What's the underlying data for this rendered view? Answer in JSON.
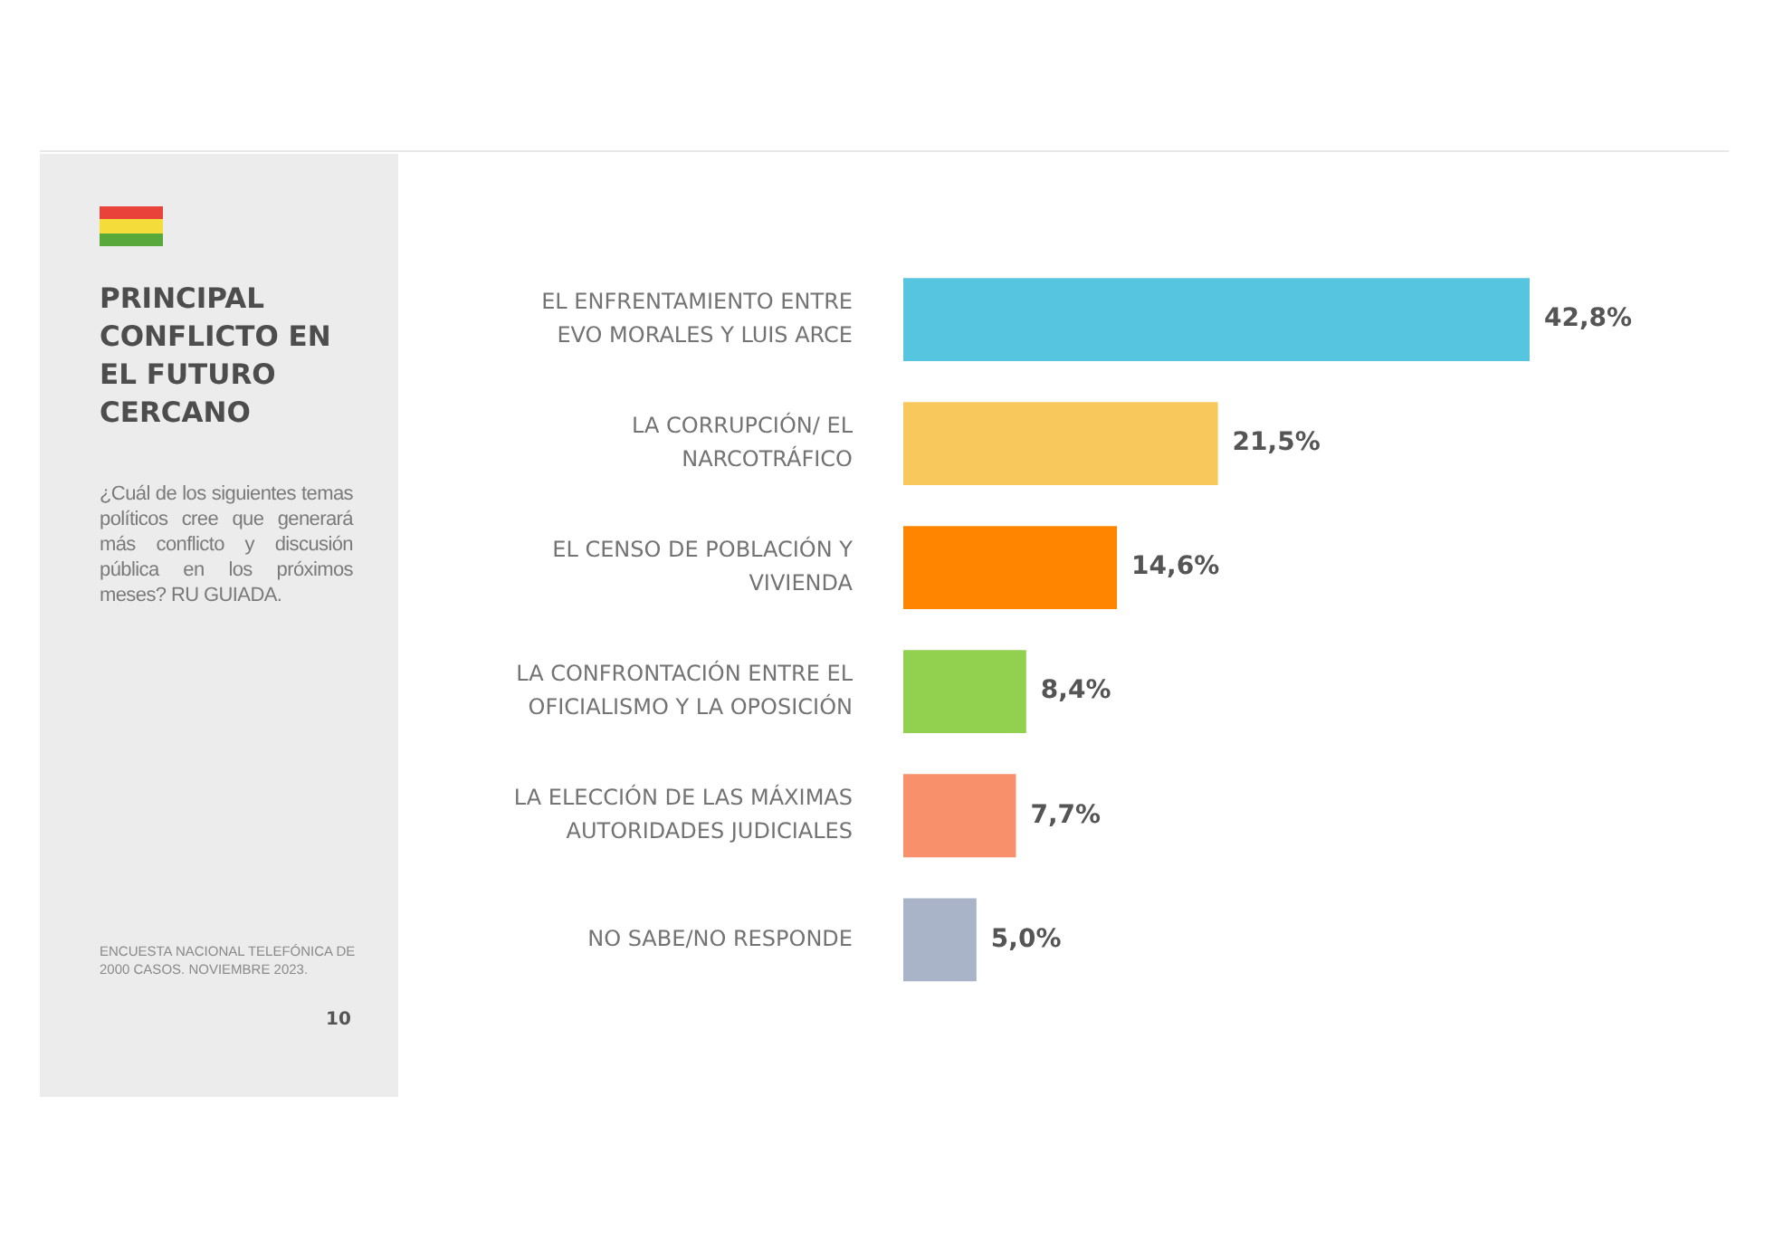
{
  "chart_data": {
    "type": "bar",
    "orientation": "horizontal",
    "title": "PRINCIPAL CONFLICTO EN EL FUTURO CERCANO",
    "subtitle": "¿Cuál de los siguientes temas políticos cree que generará más conflicto y discusión pública en los próximos meses? RU GUIADA.",
    "annotations": [
      "ENCUESTA NACIONAL TELEFÓNICA DE 2000 CASOS. NOVIEMBRE 2023.",
      "10"
    ],
    "categories": [
      "EL ENFRENTAMIENTO ENTRE EVO MORALES Y LUIS ARCE",
      "LA CORRUPCIÓN/ EL NARCOTRÁFICO",
      "EL CENSO DE POBLACIÓN Y VIVIENDA",
      "LA CONFRONTACIÓN ENTRE EL OFICIALISMO Y LA OPOSICIÓN",
      "LA ELECCIÓN DE LAS MÁXIMAS AUTORIDADES JUDICIALES",
      "NO SABE/NO RESPONDE"
    ],
    "values": [
      42.8,
      21.5,
      14.6,
      8.4,
      7.7,
      5.0
    ],
    "value_labels": [
      "42,8%",
      "21,5%",
      "14,6%",
      "8,4%",
      "7,7%",
      "5,0%"
    ],
    "colors": [
      "#56c5df",
      "#f9c85c",
      "#ff8400",
      "#92d050",
      "#f8916b",
      "#a9b4c9"
    ],
    "tick_labels": "y"
  }
}
